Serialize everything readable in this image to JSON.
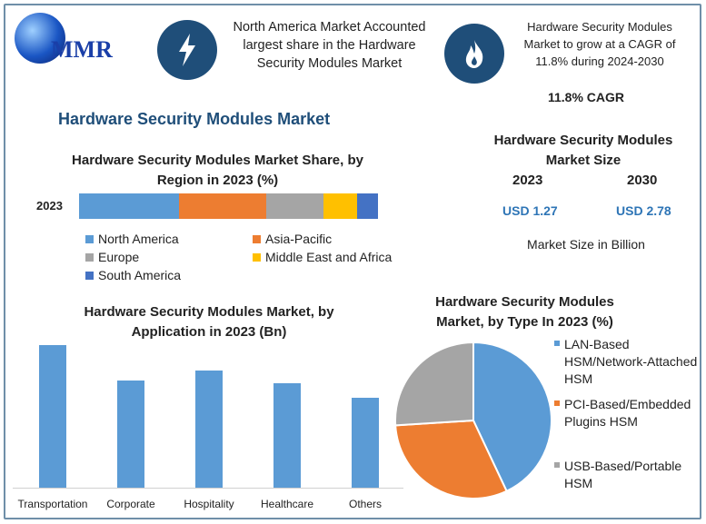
{
  "logo": {
    "text": "MMR"
  },
  "header": {
    "fact1": "North America Market Accounted largest share in the Hardware Security Modules Market",
    "fact1_icon": "lightning-icon",
    "fact2": "Hardware Security Modules Market to grow at a CAGR of 11.8% during 2024-2030",
    "fact2_icon": "flame-icon",
    "cagr": "11.8% CAGR"
  },
  "main_title": "Hardware Security Modules Market",
  "market_size": {
    "title": "Hardware Security Modules Market Size",
    "years": [
      "2023",
      "2030"
    ],
    "values": [
      "USD 1.27",
      "USD 2.78"
    ],
    "note": "Market Size in Billion"
  },
  "colors": {
    "accent": "#1f4e79",
    "title": "#1f4e79",
    "value": "#2e75b6",
    "blue": "#5b9bd5",
    "orange": "#ed7d31",
    "gray": "#a5a5a5",
    "yellow": "#ffc000",
    "darkblue": "#4472c4"
  },
  "chart_data": [
    {
      "type": "bar",
      "orientation": "horizontal",
      "stacked": true,
      "title": "Hardware Security Modules Market Share, by Region in 2023 (%)",
      "categories": [
        "2023"
      ],
      "series": [
        {
          "name": "North America",
          "values": [
            33
          ],
          "color": "#5b9bd5"
        },
        {
          "name": "Asia-Pacific",
          "values": [
            29
          ],
          "color": "#ed7d31"
        },
        {
          "name": "Europe",
          "values": [
            19
          ],
          "color": "#a5a5a5"
        },
        {
          "name": "Middle East and Africa",
          "values": [
            11
          ],
          "color": "#ffc000"
        },
        {
          "name": "South America",
          "values": [
            7
          ],
          "color": "#4472c4"
        }
      ],
      "legend": "bottom"
    },
    {
      "type": "bar",
      "title": "Hardware Security Modules Market, by Application in 2023 (Bn)",
      "categories": [
        "Transportation",
        "Corporate",
        "Hospitality",
        "Healthcare",
        "Others"
      ],
      "values": [
        1.0,
        0.75,
        0.82,
        0.73,
        0.63
      ],
      "color": "#5b9bd5"
    },
    {
      "type": "pie",
      "title": "Hardware Security Modules Market, by Type In 2023 (%)",
      "slices": [
        {
          "name": "LAN-Based HSM/Network-Attached HSM",
          "value": 43,
          "color": "#5b9bd5"
        },
        {
          "name": "PCI-Based/Embedded Plugins HSM",
          "value": 31,
          "color": "#ed7d31"
        },
        {
          "name": "USB-Based/Portable HSM",
          "value": 26,
          "color": "#a5a5a5"
        }
      ],
      "legend": "right"
    }
  ]
}
